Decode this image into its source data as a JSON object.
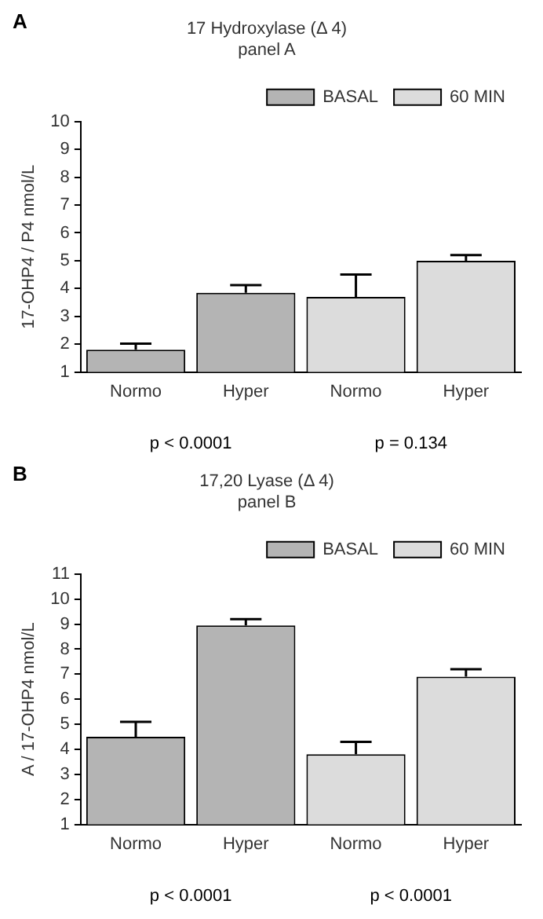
{
  "chart_data": [
    {
      "type": "bar",
      "title": "17 Hydroxylase (Δ 4)",
      "subtitle": "panel A",
      "ylabel": "17-OHP4 / P4 nmol/L",
      "categories": [
        "Normo",
        "Hyper",
        "Normo",
        "Hyper"
      ],
      "series": [
        {
          "name": "BASAL",
          "color": "#b4b4b4",
          "values": [
            1.8,
            3.85,
            null,
            null
          ],
          "errors": [
            [
              1.8,
              2.02
            ],
            [
              3.85,
              4.12
            ],
            null,
            null
          ]
        },
        {
          "name": "60 MIN",
          "color": "#dcdcdc",
          "values": [
            null,
            null,
            3.7,
            5.0
          ],
          "errors": [
            null,
            null,
            [
              3.7,
              4.5
            ],
            [
              5.0,
              5.2
            ]
          ]
        }
      ],
      "ylim": [
        1,
        10
      ],
      "yticks": [
        1,
        2,
        3,
        4,
        5,
        6,
        7,
        8,
        9,
        10
      ],
      "grid": false,
      "legend": "top right",
      "annotations": [
        "A",
        "p < 0.0001",
        "p = 0.134"
      ]
    },
    {
      "type": "bar",
      "title": "17,20 Lyase (Δ 4)",
      "subtitle": "panel B",
      "ylabel": "A / 17-OHP4 nmol/L",
      "categories": [
        "Normo",
        "Hyper",
        "Normo",
        "Hyper"
      ],
      "series": [
        {
          "name": "BASAL",
          "color": "#b4b4b4",
          "values": [
            4.5,
            8.95,
            null,
            null
          ],
          "errors": [
            [
              4.5,
              5.1
            ],
            [
              8.95,
              9.2
            ],
            null,
            null
          ]
        },
        {
          "name": "60 MIN",
          "color": "#dcdcdc",
          "values": [
            null,
            null,
            3.8,
            6.9
          ],
          "errors": [
            null,
            null,
            [
              3.8,
              4.3
            ],
            [
              6.9,
              7.2
            ]
          ]
        }
      ],
      "ylim": [
        1,
        11
      ],
      "yticks": [
        1,
        2,
        3,
        4,
        5,
        6,
        7,
        8,
        9,
        10,
        11
      ],
      "grid": false,
      "legend": "top right",
      "annotations": [
        "B",
        "p < 0.0001",
        "p < 0.0001"
      ]
    }
  ]
}
